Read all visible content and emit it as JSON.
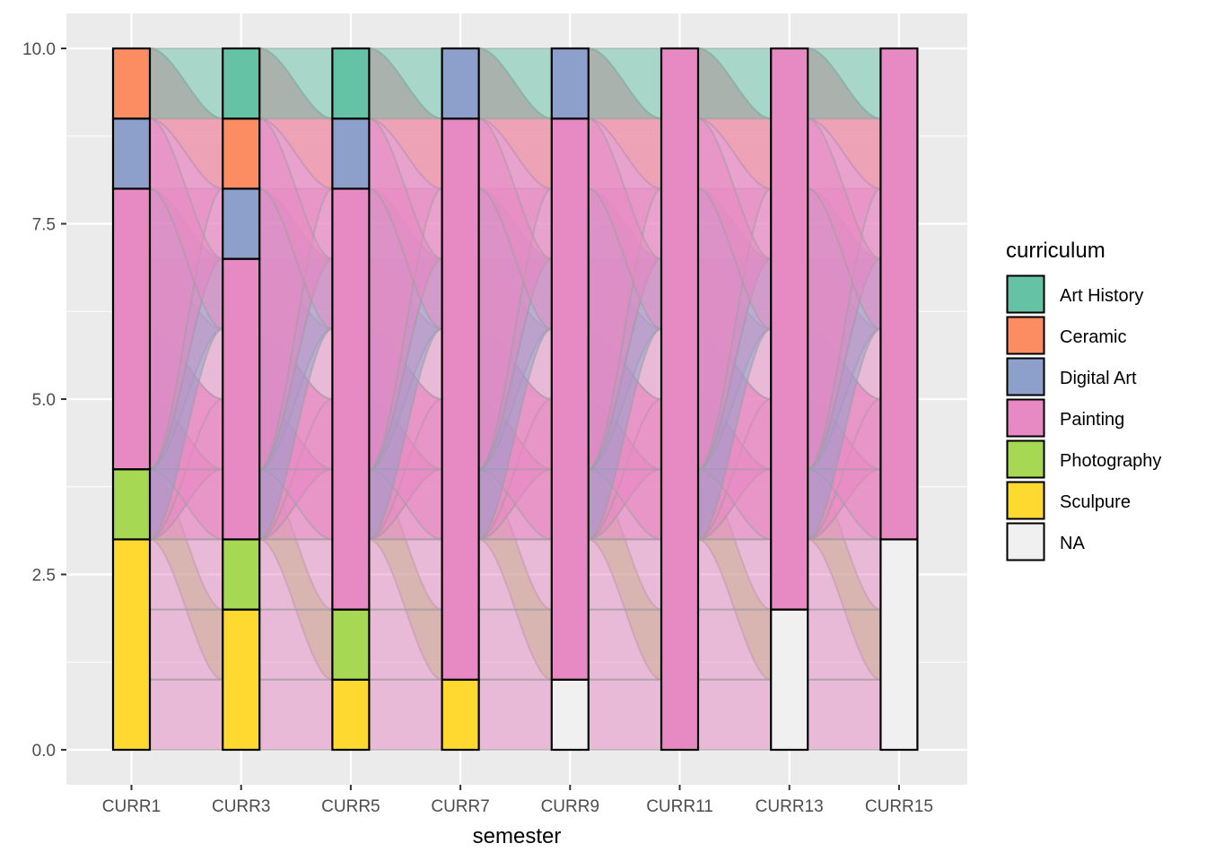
{
  "chart_data": {
    "type": "alluvial",
    "x": [
      "CURR1",
      "CURR3",
      "CURR5",
      "CURR7",
      "CURR9",
      "CURR11",
      "CURR13",
      "CURR15"
    ],
    "xlabel": "semester",
    "ylabel": "",
    "ylim": [
      0,
      10
    ],
    "yticks": [
      {
        "value": 0,
        "label": "0.0"
      },
      {
        "value": 2.5,
        "label": "2.5"
      },
      {
        "value": 5,
        "label": "5.0"
      },
      {
        "value": 7.5,
        "label": "7.5"
      },
      {
        "value": 10,
        "label": "10.0"
      }
    ],
    "legend": {
      "title": "curriculum",
      "placement": "right",
      "entries": [
        {
          "key": "Art History",
          "label": "Art History",
          "color": "#66C2A5"
        },
        {
          "key": "Ceramic",
          "label": "Ceramic",
          "color": "#FC8D62"
        },
        {
          "key": "Digital Art",
          "label": "Digital Art",
          "color": "#8DA0CB"
        },
        {
          "key": "Painting",
          "label": "Painting",
          "color": "#E78AC3"
        },
        {
          "key": "Photography",
          "label": "Photography",
          "color": "#A6D854"
        },
        {
          "key": "Sculpure",
          "label": "Sculpure",
          "color": "#FFD92F"
        },
        {
          "key": "NA",
          "label": "NA",
          "color": "#F0F0F0"
        }
      ]
    },
    "strata": [
      [
        {
          "key": "Sculpure",
          "count": 3
        },
        {
          "key": "Photography",
          "count": 1
        },
        {
          "key": "Painting",
          "count": 4
        },
        {
          "key": "Digital Art",
          "count": 1
        },
        {
          "key": "Ceramic",
          "count": 1
        }
      ],
      [
        {
          "key": "Sculpure",
          "count": 2
        },
        {
          "key": "Photography",
          "count": 1
        },
        {
          "key": "Painting",
          "count": 4
        },
        {
          "key": "Digital Art",
          "count": 1
        },
        {
          "key": "Ceramic",
          "count": 1
        },
        {
          "key": "Art History",
          "count": 1
        }
      ],
      [
        {
          "key": "Sculpure",
          "count": 1
        },
        {
          "key": "Photography",
          "count": 1
        },
        {
          "key": "Painting",
          "count": 6
        },
        {
          "key": "Digital Art",
          "count": 1
        },
        {
          "key": "Art History",
          "count": 1
        }
      ],
      [
        {
          "key": "Sculpure",
          "count": 1
        },
        {
          "key": "Painting",
          "count": 8
        },
        {
          "key": "Digital Art",
          "count": 1
        }
      ],
      [
        {
          "key": "NA",
          "count": 1
        },
        {
          "key": "Painting",
          "count": 8
        },
        {
          "key": "Digital Art",
          "count": 1
        }
      ],
      [
        {
          "key": "Painting",
          "count": 10
        }
      ],
      [
        {
          "key": "NA",
          "count": 2
        },
        {
          "key": "Painting",
          "count": 8
        }
      ],
      [
        {
          "key": "NA",
          "count": 3
        },
        {
          "key": "Painting",
          "count": 7
        }
      ]
    ],
    "flows": [
      {
        "from": [
          3,
          4
        ],
        "to": [
          1,
          2
        ],
        "curriculum": "Photography"
      },
      {
        "from": [
          3,
          3
        ],
        "to": [
          4,
          5
        ],
        "curriculum": "Painting"
      },
      {
        "from": [
          3,
          4
        ],
        "to": [
          3,
          4
        ],
        "curriculum": "Painting"
      },
      {
        "from": [
          3,
          5
        ],
        "to": [
          3,
          4
        ],
        "curriculum": "Painting"
      },
      {
        "from": [
          3,
          6
        ],
        "to": [
          4,
          5
        ],
        "curriculum": "Painting"
      },
      {
        "from": [
          3,
          7
        ],
        "to": [
          5,
          6
        ],
        "curriculum": "Painting"
      },
      {
        "from": [
          4,
          5
        ],
        "to": [
          3,
          4
        ],
        "curriculum": "Painting"
      },
      {
        "from": [
          4,
          6
        ],
        "to": [
          4,
          5
        ],
        "curriculum": "Painting"
      },
      {
        "from": [
          4,
          7
        ],
        "to": [
          6,
          7
        ],
        "curriculum": "Painting"
      },
      {
        "from": [
          4,
          8
        ],
        "to": [
          7,
          8
        ],
        "curriculum": "Painting"
      },
      {
        "from": [
          3,
          8
        ],
        "to": [
          6,
          7
        ],
        "curriculum": "Digital Art"
      },
      {
        "from": [
          9,
          10
        ],
        "to": [
          8,
          9
        ],
        "curriculum": "Ceramic"
      },
      {
        "from": [
          4,
          9
        ],
        "to": [
          7,
          8
        ],
        "curriculum": "Painting"
      },
      {
        "from": [
          4,
          10
        ],
        "to": [
          8,
          9
        ],
        "curriculum": "Painting"
      },
      {
        "from": [
          9,
          10
        ],
        "to": [
          9,
          10
        ],
        "curriculum": "Art History"
      },
      {
        "from": [
          8,
          9
        ],
        "to": [
          6,
          7
        ],
        "curriculum": "Painting"
      },
      {
        "from": [
          2,
          3
        ],
        "to": [
          2,
          3
        ],
        "curriculum": "Painting"
      },
      {
        "from": [
          1,
          2
        ],
        "to": [
          1,
          2
        ],
        "curriculum": "Painting"
      },
      {
        "from": [
          0,
          1
        ],
        "to": [
          0,
          1
        ],
        "curriculum": "Painting"
      }
    ]
  }
}
